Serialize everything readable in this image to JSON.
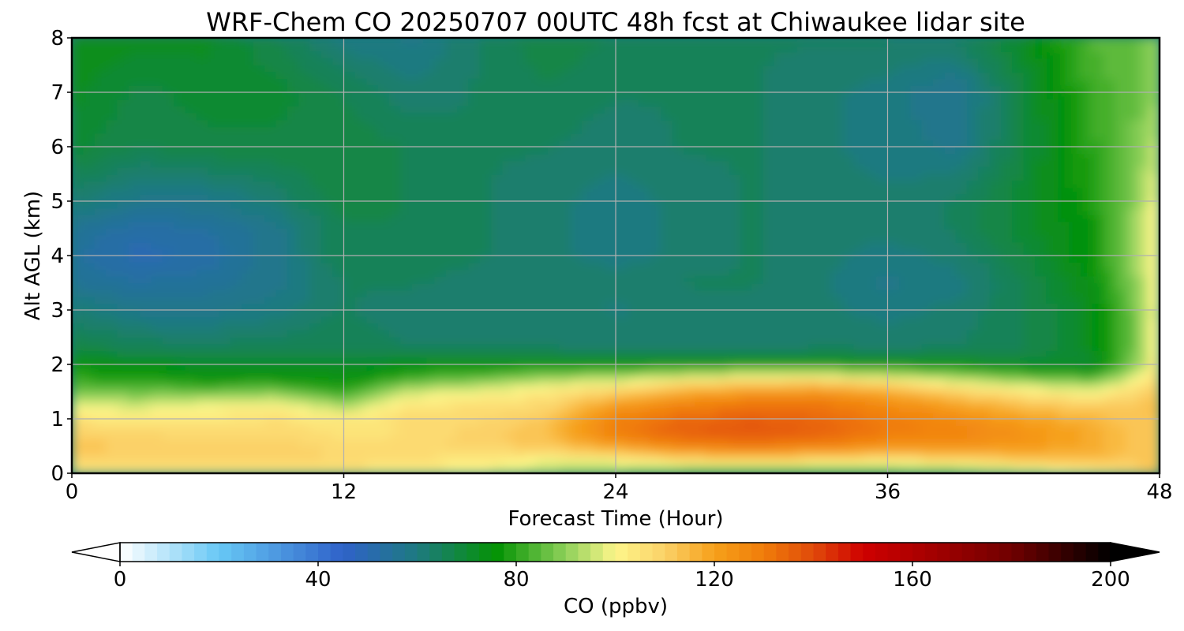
{
  "chart_data": {
    "type": "heatmap",
    "title": "WRF-Chem CO  20250707 00UTC 48h fcst at Chiwaukee lidar site",
    "xlabel": "Forecast Time (Hour)",
    "ylabel": "Alt AGL (km)",
    "xlim": [
      0,
      48
    ],
    "ylim": [
      0,
      8
    ],
    "x_ticks": [
      0,
      12,
      24,
      36,
      48
    ],
    "y_ticks": [
      0,
      1,
      2,
      3,
      4,
      5,
      6,
      7,
      8
    ],
    "grid": true,
    "x": [
      0,
      3,
      6,
      9,
      12,
      15,
      18,
      21,
      24,
      27,
      30,
      33,
      36,
      39,
      42,
      45,
      47,
      48
    ],
    "y": [
      0,
      0.25,
      0.5,
      0.75,
      1,
      1.25,
      1.5,
      1.75,
      2,
      2.25,
      3,
      3.5,
      4,
      4.5,
      5,
      6,
      7,
      8
    ],
    "z": [
      [
        105,
        104,
        103,
        104,
        103,
        102,
        98,
        92,
        88,
        82,
        80,
        80,
        82,
        86,
        92,
        100,
        108,
        112
      ],
      [
        110,
        108,
        108,
        110,
        108,
        106,
        104,
        100,
        102,
        108,
        110,
        108,
        106,
        108,
        112,
        115,
        112,
        112
      ],
      [
        112,
        112,
        112,
        110,
        108,
        108,
        110,
        112,
        120,
        128,
        130,
        128,
        124,
        124,
        122,
        118,
        112,
        112
      ],
      [
        110,
        108,
        107,
        108,
        105,
        106,
        110,
        114,
        130,
        136,
        138,
        136,
        130,
        128,
        124,
        118,
        112,
        114
      ],
      [
        106,
        104,
        104,
        106,
        104,
        108,
        108,
        112,
        128,
        134,
        136,
        134,
        130,
        126,
        120,
        116,
        112,
        114
      ],
      [
        98,
        96,
        100,
        102,
        92,
        105,
        106,
        108,
        122,
        128,
        132,
        132,
        126,
        120,
        114,
        110,
        112,
        115
      ],
      [
        88,
        86,
        86,
        88,
        80,
        96,
        100,
        104,
        110,
        118,
        122,
        124,
        118,
        110,
        104,
        100,
        108,
        112
      ],
      [
        80,
        78,
        76,
        76,
        74,
        82,
        86,
        92,
        94,
        100,
        104,
        104,
        100,
        94,
        88,
        84,
        98,
        110
      ],
      [
        76,
        74,
        72,
        72,
        72,
        74,
        74,
        76,
        76,
        76,
        78,
        78,
        76,
        74,
        72,
        70,
        90,
        106
      ],
      [
        68,
        66,
        65,
        66,
        66,
        64,
        64,
        64,
        63,
        63,
        63,
        64,
        64,
        64,
        66,
        72,
        88,
        104
      ],
      [
        62,
        58,
        58,
        60,
        64,
        62,
        62,
        62,
        61,
        62,
        62,
        62,
        60,
        62,
        66,
        72,
        88,
        102
      ],
      [
        56,
        54,
        55,
        58,
        64,
        64,
        62,
        64,
        62,
        64,
        64,
        62,
        58,
        60,
        66,
        74,
        90,
        104
      ],
      [
        54,
        50,
        52,
        58,
        66,
        66,
        64,
        62,
        60,
        62,
        64,
        62,
        60,
        62,
        68,
        76,
        92,
        104
      ],
      [
        56,
        52,
        54,
        58,
        66,
        66,
        64,
        62,
        60,
        62,
        64,
        62,
        62,
        64,
        70,
        76,
        92,
        104
      ],
      [
        62,
        58,
        58,
        62,
        68,
        66,
        64,
        62,
        60,
        62,
        64,
        62,
        62,
        64,
        70,
        78,
        90,
        102
      ],
      [
        70,
        66,
        68,
        68,
        68,
        66,
        64,
        64,
        62,
        64,
        64,
        62,
        60,
        58,
        68,
        80,
        88,
        96
      ],
      [
        72,
        68,
        70,
        70,
        66,
        62,
        64,
        66,
        64,
        64,
        64,
        62,
        60,
        56,
        68,
        82,
        86,
        92
      ],
      [
        74,
        72,
        72,
        66,
        60,
        58,
        64,
        68,
        66,
        64,
        64,
        64,
        64,
        64,
        72,
        84,
        86,
        90
      ]
    ],
    "colorbar": {
      "label": "CO  (ppbv)",
      "min": 0,
      "max": 200,
      "ticks": [
        0,
        40,
        80,
        120,
        160,
        200
      ],
      "extend": "both",
      "orientation": "horizontal",
      "placement": "bottom"
    },
    "colormap_stops": [
      [
        0,
        "#ffffff"
      ],
      [
        20,
        "#67c8f5"
      ],
      [
        45,
        "#2f62c9"
      ],
      [
        60,
        "#1e7a80"
      ],
      [
        76,
        "#049304"
      ],
      [
        90,
        "#8ed05a"
      ],
      [
        100,
        "#fdf68a"
      ],
      [
        110,
        "#fbd168"
      ],
      [
        120,
        "#f6a01a"
      ],
      [
        130,
        "#f07c0a"
      ],
      [
        140,
        "#e04a0a"
      ],
      [
        150,
        "#cf0000"
      ],
      [
        160,
        "#b00000"
      ],
      [
        180,
        "#700000"
      ],
      [
        200,
        "#000000"
      ]
    ]
  }
}
